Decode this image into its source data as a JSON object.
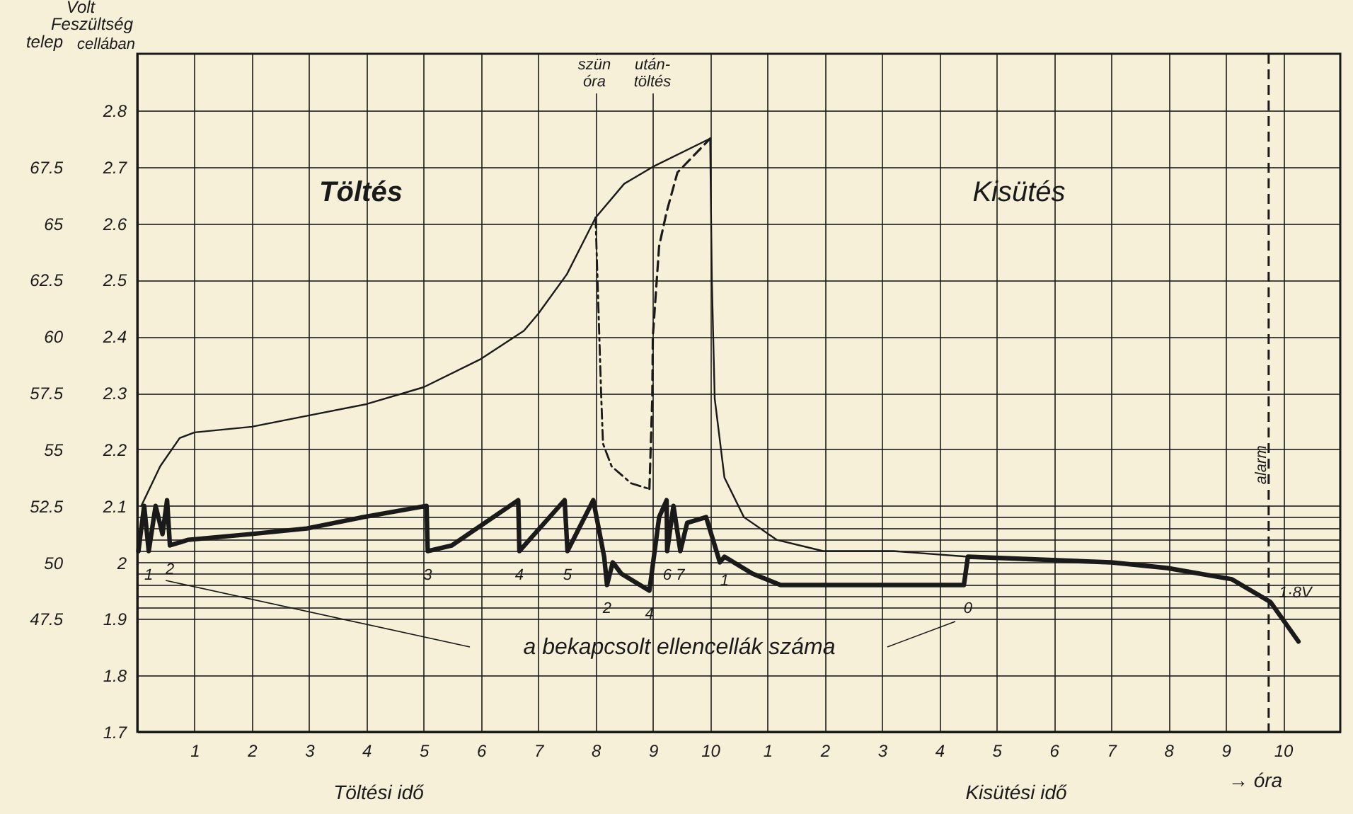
{
  "chart_data": {
    "type": "line",
    "xlabel": "Töltési idő",
    "x2label": "Kisütési idő",
    "ylabel": "cellában",
    "y2label": "telep",
    "xlim": [
      0,
      21
    ],
    "xticks": [
      1,
      2,
      3,
      4,
      5,
      6,
      7,
      8,
      9,
      10
    ],
    "x2lim": [
      -10,
      11
    ],
    "x2ticks": [
      1,
      2,
      3,
      4,
      5,
      6,
      7,
      8,
      9,
      10
    ],
    "ylim": [
      1.7,
      2.9
    ],
    "yticks": [
      1.7,
      1.8,
      1.9,
      {
        "value": 1.92,
        "label": null
      },
      {
        "value": 1.94,
        "label": null
      },
      {
        "value": 1.96,
        "label": null
      },
      {
        "value": 1.98,
        "label": null
      },
      2,
      {
        "value": 2.02,
        "label": null
      },
      {
        "value": 2.04,
        "label": null
      },
      {
        "value": 2.06,
        "label": null
      },
      {
        "value": 2.08,
        "label": null
      },
      2.1,
      2.2,
      2.3,
      2.4,
      2.5,
      2.6,
      2.7,
      2.8
    ],
    "y2lim": [
      42.5,
      72.5
    ],
    "y2ticks": [
      47.5,
      50,
      52.5,
      55,
      57.5,
      60,
      62.5,
      65,
      67.5
    ],
    "grid": true,
    "series": [
      {
        "color": "#1a1a1a",
        "line_style": "solid",
        "x": [
          0.02,
          0.12,
          0.2,
          0.32,
          0.44,
          0.52,
          0.57,
          0.89,
          1.97,
          2.96,
          3.94,
          5.05,
          5.07,
          5.49,
          6.65,
          6.67,
          7.46,
          7.51,
          7.96,
          8.15,
          8.2,
          8.3,
          8.45,
          8.94,
          9.11,
          9.24,
          9.25,
          9.36,
          9.48,
          9.6,
          9.93,
          10.17,
          10.25,
          10.74,
          11.23,
          12.39,
          14.43,
          14.5,
          17,
          17.98,
          19.11,
          19.78,
          20.27
        ],
        "values": [
          2.02,
          2.1,
          2.02,
          2.1,
          2.05,
          2.11,
          2.03,
          2.04,
          2.05,
          2.06,
          2.08,
          2.1,
          2.02,
          2.03,
          2.11,
          2.02,
          2.11,
          2.02,
          2.11,
          2.01,
          1.96,
          2,
          1.98,
          1.95,
          2.08,
          2.11,
          2.02,
          2.1,
          2.02,
          2.07,
          2.08,
          2,
          2.01,
          1.98,
          1.96,
          1.96,
          1.96,
          2.01,
          2,
          1.99,
          1.97,
          1.93,
          1.86
        ]
      },
      {
        "color": "#1a1a1a",
        "line_style": "solid",
        "x": [
          0.07,
          0.4,
          0.74,
          1,
          2,
          3,
          4,
          5,
          6,
          6.75,
          7,
          7.5,
          7.8,
          8,
          8.5,
          9,
          10,
          10.03,
          10.08,
          10.25,
          10.59,
          11.16,
          11.97,
          13.2,
          14.5
        ],
        "values": [
          2.1,
          2.17,
          2.22,
          2.23,
          2.24,
          2.26,
          2.28,
          2.31,
          2.36,
          2.41,
          2.44,
          2.51,
          2.57,
          2.61,
          2.67,
          2.7,
          2.75,
          2.5,
          2.29,
          2.15,
          2.08,
          2.04,
          2.02,
          2.02,
          2.01
        ]
      },
      {
        "color": "#1a1a1a",
        "line_style": "dotted",
        "x": [
          8,
          8.05,
          8.1,
          8.13,
          8.28,
          8.62,
          8.94
        ],
        "values": [
          2.61,
          2.45,
          2.29,
          2.21,
          2.17,
          2.14,
          2.13
        ]
      },
      {
        "color": "#1a1a1a",
        "line_style": "dashed",
        "x": [
          8.94,
          8.99,
          9,
          9.11,
          9.24,
          9.43,
          10
        ],
        "values": [
          2.13,
          2.29,
          2.4,
          2.56,
          2.62,
          2.69,
          2.75
        ]
      }
    ],
    "ref_lines": [
      {
        "axis": "x2",
        "value": 9.75,
        "label": "alarm",
        "line_style": "dashed"
      }
    ],
    "annotations": [
      "Volt",
      "Feszültség",
      "Töltés",
      "Kisütés",
      "szün óra",
      "után-töltés",
      "a bekapcsolt ellencellák száma",
      "→ óra",
      {
        "text": "1",
        "x": 0.2,
        "y": 2.02
      },
      {
        "text": "2",
        "x": 0.57,
        "y": 2.03
      },
      {
        "text": "3",
        "x": 5.07,
        "y": 2.02
      },
      {
        "text": "4",
        "x": 6.67,
        "y": 2.02
      },
      {
        "text": "5",
        "x": 7.51,
        "y": 2.02
      },
      {
        "text": "2",
        "x": 8.2,
        "y": 1.96
      },
      {
        "text": "4",
        "x": 8.94,
        "y": 1.95
      },
      {
        "text": "6",
        "x": 9.25,
        "y": 2.02
      },
      {
        "text": "7",
        "x": 9.48,
        "y": 2.02
      },
      {
        "text": "1",
        "x": 10.25,
        "y": 2.01
      },
      {
        "text": "0",
        "x": 14.5,
        "y": 1.96
      },
      {
        "text": "1·8V",
        "x": 19.78,
        "y": 1.93
      }
    ]
  }
}
